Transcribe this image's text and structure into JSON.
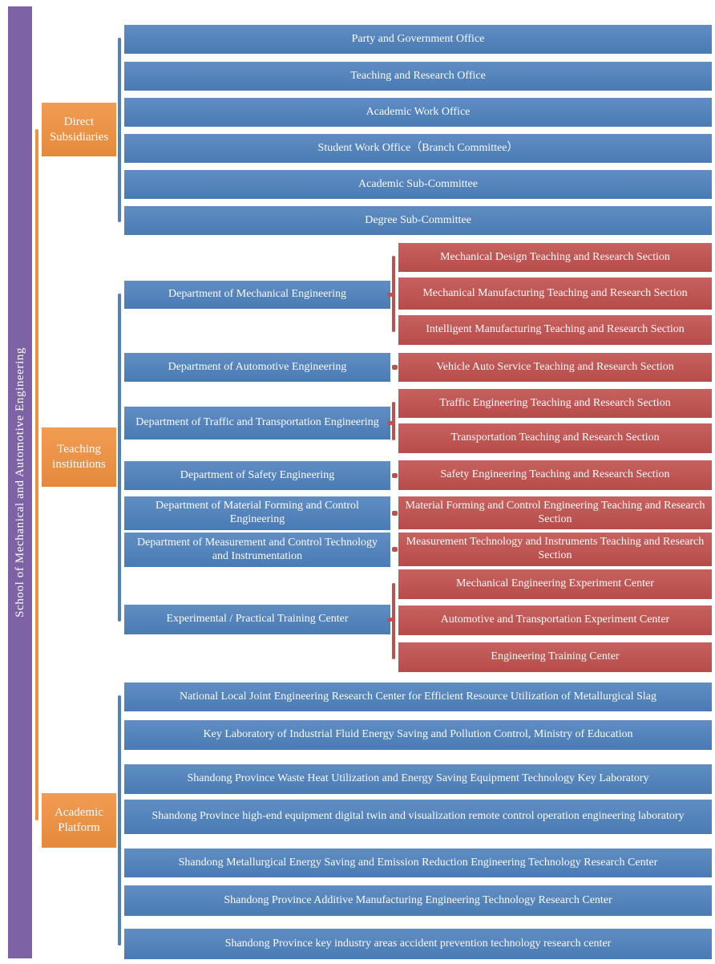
{
  "root_label": "School of Mechanical and Automotive Engineering",
  "colors": {
    "box_blue": "#4E81BD",
    "box_red": "#C0504D",
    "label_orange": "#F0913F",
    "root_purple": "#7D63A5",
    "text_white": "#FBFBFB"
  },
  "groups": [
    {
      "label": "Direct Subsidiaries",
      "items": [
        "Party and Government Office",
        "Teaching and Research Office",
        "Academic Work Office",
        "Student Work Office（Branch Committee）",
        "Academic Sub-Committee",
        "Degree Sub-Committee"
      ]
    },
    {
      "label": "Teaching institutions",
      "departments": [
        {
          "label": "Department of Mechanical Engineering",
          "sections": [
            "Mechanical Design Teaching and Research Section",
            "Mechanical Manufacturing Teaching and Research Section",
            "Intelligent Manufacturing Teaching and Research Section"
          ]
        },
        {
          "label": "Department of Automotive Engineering",
          "sections": [
            "Vehicle Auto Service Teaching and Research Section"
          ]
        },
        {
          "label": "Department of Traffic and Transportation Engineering",
          "sections": [
            "Traffic Engineering Teaching and Research Section",
            "Transportation Teaching and Research Section"
          ]
        },
        {
          "label": "Department of Safety Engineering",
          "sections": [
            "Safety Engineering Teaching and Research Section"
          ]
        },
        {
          "label": "Department of Material Forming and Control Engineering",
          "sections": [
            "Material Forming and Control Engineering Teaching and Research Section"
          ]
        },
        {
          "label": "Department of Measurement and Control Technology and Instrumentation",
          "sections": [
            "Measurement Technology and Instruments Teaching and Research Section"
          ]
        },
        {
          "label": "Experimental / Practical Training Center",
          "sections": [
            "Mechanical Engineering Experiment Center",
            "Automotive and Transportation Experiment Center",
            "Engineering Training Center"
          ]
        }
      ]
    },
    {
      "label": "Academic Platform",
      "items": [
        "National Local Joint Engineering Research Center for Efficient Resource Utilization of Metallurgical Slag",
        "Key Laboratory of Industrial Fluid Energy Saving and Pollution Control, Ministry of Education",
        "Shandong Province Waste Heat Utilization and Energy Saving Equipment Technology Key Laboratory",
        "Shandong Province high-end equipment digital twin and visualization remote control operation engineering laboratory",
        "Shandong Metallurgical Energy Saving and Emission Reduction Engineering Technology Research Center",
        "Shandong Province Additive Manufacturing Engineering Technology Research Center",
        "Shandong Province key industry areas accident prevention technology research center"
      ]
    }
  ]
}
